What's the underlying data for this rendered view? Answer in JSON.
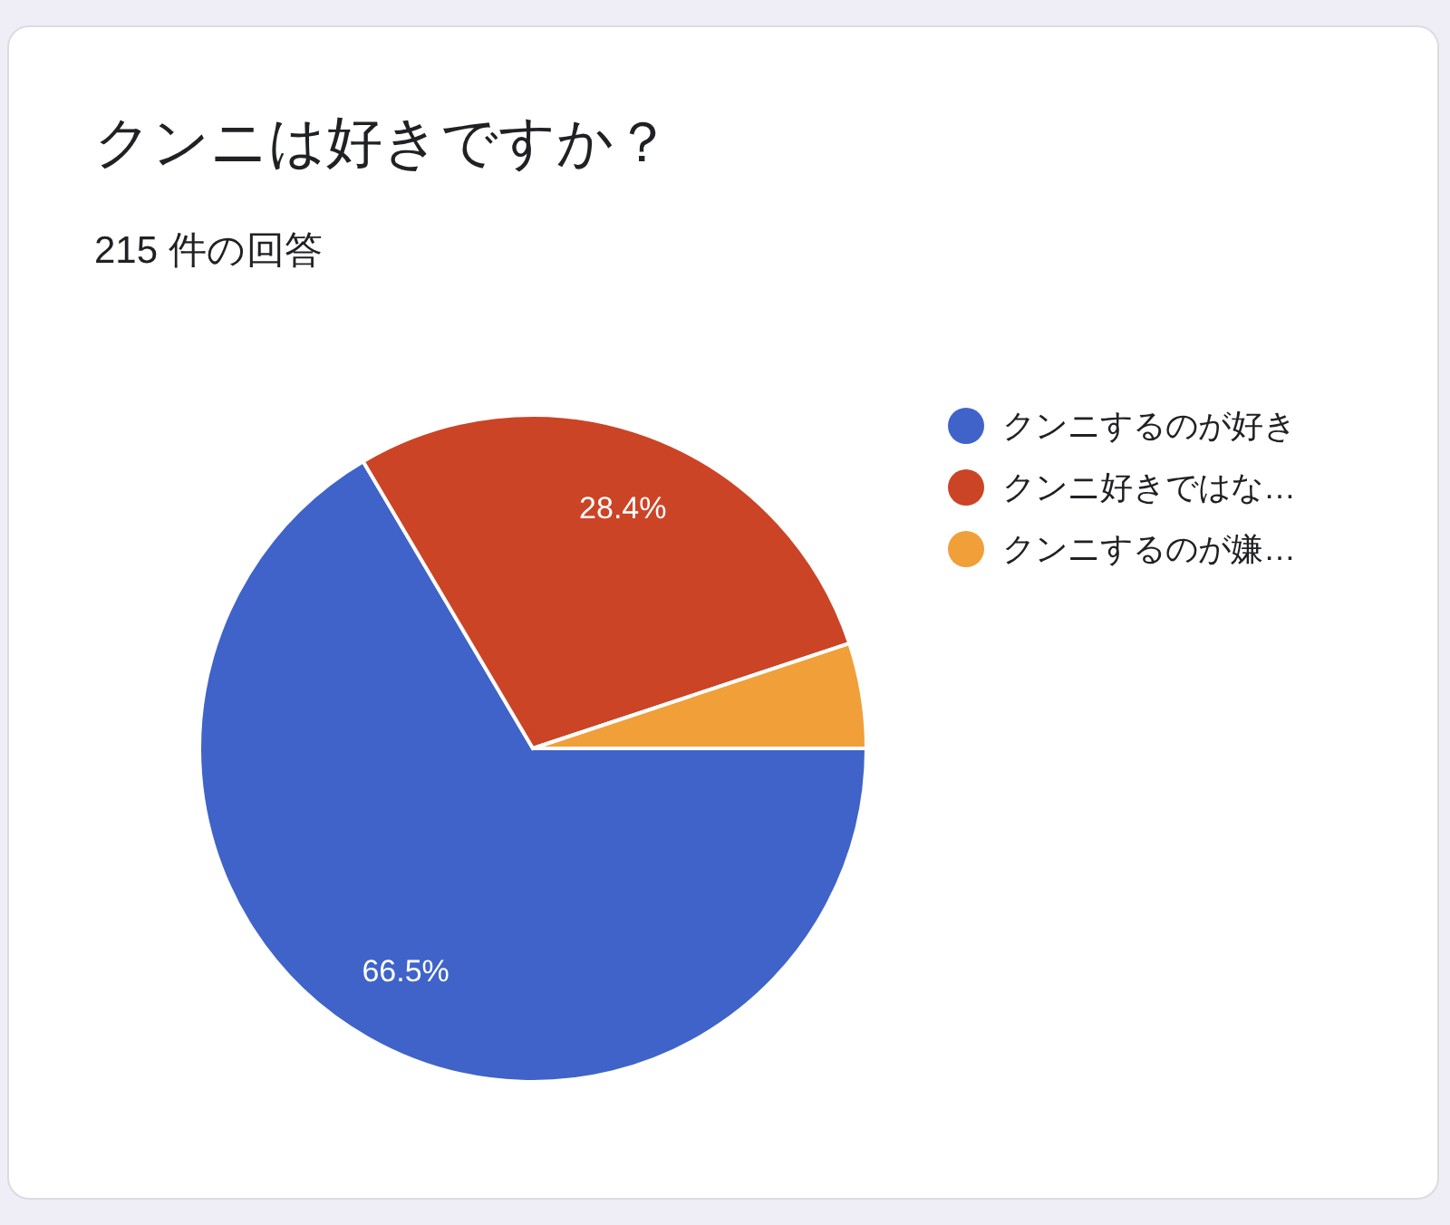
{
  "chart_data": {
    "type": "pie",
    "title": "クンニは好きですか？",
    "subtitle": "215 件の回答",
    "categories": [
      "クンニするのが好き",
      "クンニ好きではな…",
      "クンニするのが嫌…"
    ],
    "values": [
      66.5,
      28.4,
      5.1
    ],
    "colors": [
      "#3f63c8",
      "#cb4426",
      "#f09f39"
    ],
    "value_labels": [
      "66.5%",
      "28.4%",
      null
    ],
    "legend": "right"
  }
}
